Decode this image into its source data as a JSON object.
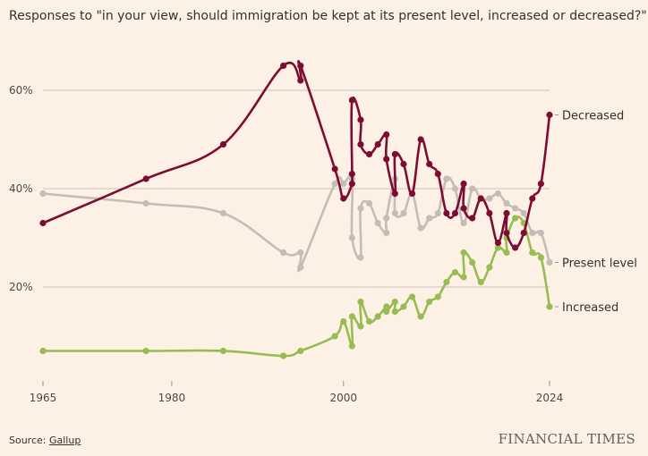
{
  "title": "Responses to \"in your view, should immigration be kept at its present level, increased or decreased?\"",
  "source_label": "Source: ",
  "source_name": "Gallup",
  "logo": "FINANCIAL TIMES",
  "chart_data": {
    "type": "line",
    "title": "Responses to \"in your view, should immigration be kept at its present level, increased or decreased?\"",
    "xlabel": "",
    "ylabel": "",
    "xlim": [
      1965,
      2024
    ],
    "ylim": [
      0,
      60
    ],
    "x_ticks": [
      1965,
      1980,
      2000,
      2024
    ],
    "x_tick_labels": [
      "1965",
      "1980",
      "2000",
      "2024"
    ],
    "y_ticks": [
      20,
      40,
      60
    ],
    "y_tick_labels": [
      "20%",
      "40%",
      "60%"
    ],
    "grid": true,
    "legend": "direct labels at right",
    "series": [
      {
        "name": "Decreased",
        "color": "#7d0c33",
        "x": [
          1965,
          1977,
          1986,
          1993,
          1995,
          1995,
          1999,
          2000,
          2001,
          2001,
          2001,
          2002,
          2002,
          2003,
          2004,
          2005,
          2005,
          2006,
          2006,
          2007,
          2008,
          2009,
          2010,
          2011,
          2012,
          2013,
          2014,
          2014,
          2015,
          2016,
          2017,
          2018,
          2019,
          2019,
          2020,
          2021,
          2022,
          2023,
          2024
        ],
        "y": [
          33,
          42,
          49,
          65,
          62,
          65,
          44,
          38,
          41,
          43,
          58,
          54,
          49,
          47,
          49,
          51,
          46,
          39,
          47,
          45,
          39,
          50,
          45,
          43,
          35,
          35,
          41,
          36,
          34,
          38,
          35,
          29,
          35,
          31,
          28,
          31,
          38,
          41,
          55
        ]
      },
      {
        "name": "Present level",
        "color": "#c4bcb6",
        "x": [
          1965,
          1977,
          1986,
          1993,
          1995,
          1995,
          1999,
          2000,
          2001,
          2001,
          2002,
          2002,
          2003,
          2004,
          2005,
          2005,
          2006,
          2006,
          2007,
          2008,
          2009,
          2010,
          2011,
          2012,
          2013,
          2014,
          2015,
          2016,
          2017,
          2018,
          2019,
          2020,
          2021,
          2022,
          2023,
          2024
        ],
        "y": [
          39,
          37,
          35,
          27,
          27,
          24,
          41,
          41,
          42,
          30,
          26,
          36,
          37,
          33,
          31,
          34,
          42,
          35,
          35,
          39,
          32,
          34,
          35,
          42,
          40,
          33,
          40,
          38,
          38,
          39,
          37,
          36,
          35,
          31,
          31,
          25
        ]
      },
      {
        "name": "Increased",
        "color": "#96bc53",
        "x": [
          1965,
          1977,
          1986,
          1993,
          1995,
          1999,
          2000,
          2001,
          2001,
          2002,
          2002,
          2003,
          2004,
          2005,
          2005,
          2006,
          2006,
          2007,
          2008,
          2009,
          2010,
          2011,
          2012,
          2013,
          2014,
          2014,
          2015,
          2016,
          2017,
          2018,
          2019,
          2019,
          2020,
          2021,
          2022,
          2023,
          2024
        ],
        "y": [
          7,
          7,
          7,
          6,
          7,
          10,
          13,
          8,
          14,
          12,
          17,
          13,
          14,
          16,
          15,
          17,
          15,
          16,
          18,
          14,
          17,
          18,
          21,
          23,
          22,
          27,
          25,
          21,
          24,
          28,
          27,
          30,
          34,
          33,
          27,
          26,
          16
        ]
      }
    ]
  }
}
